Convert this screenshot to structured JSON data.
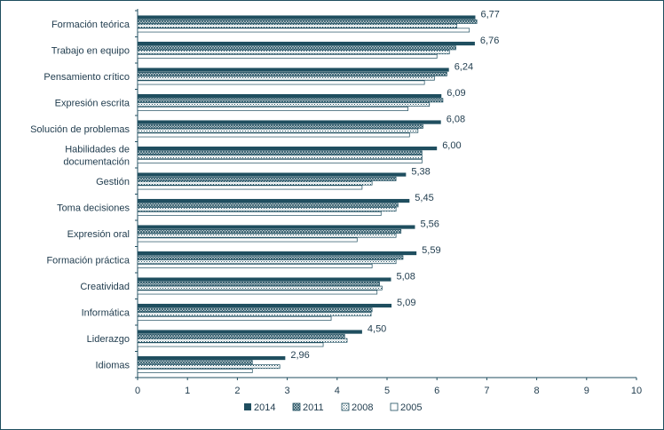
{
  "chart_data": {
    "type": "bar",
    "orientation": "horizontal",
    "categories": [
      "Formación teórica",
      "Trabajo en equipo",
      "Pensamiento crítico",
      "Expresión escrita",
      "Solución de problemas",
      [
        "Habilidades de",
        "documentación"
      ],
      "Gestión",
      "Toma decisiones",
      "Expresión oral",
      "Formación práctica",
      "Creatividad",
      "Informática",
      "Liderazgo",
      "Idiomas"
    ],
    "series": [
      {
        "name": "2014",
        "values": [
          6.77,
          6.76,
          6.24,
          6.09,
          6.08,
          6.0,
          5.38,
          5.45,
          5.56,
          5.59,
          5.08,
          5.09,
          4.5,
          2.96
        ],
        "fill": "solid",
        "color": "#1f4e5f"
      },
      {
        "name": "2011",
        "values": [
          6.8,
          6.38,
          6.2,
          6.12,
          5.72,
          5.7,
          5.18,
          5.22,
          5.28,
          5.32,
          4.85,
          4.7,
          4.15,
          2.3
        ],
        "fill": "crosshatch",
        "color": "#1f4e5f"
      },
      {
        "name": "2008",
        "values": [
          6.4,
          6.25,
          5.95,
          5.85,
          5.62,
          5.7,
          4.7,
          5.18,
          5.18,
          5.18,
          4.9,
          4.68,
          4.2,
          2.85
        ],
        "fill": "dots",
        "color": "#1f4e5f"
      },
      {
        "name": "2005",
        "values": [
          6.65,
          6.0,
          5.75,
          5.42,
          5.45,
          5.7,
          4.5,
          4.88,
          4.4,
          4.7,
          4.8,
          3.88,
          3.72,
          2.3
        ],
        "fill": "horizontal-lines",
        "color": "#1f4e5f"
      }
    ],
    "data_labels": [
      "6,77",
      "6,76",
      "6,24",
      "6,09",
      "6,08",
      "6,00",
      "5,38",
      "5,45",
      "5,56",
      "5,59",
      "5,08",
      "5,09",
      "4,50",
      "2,96"
    ],
    "x_ticks": [
      "0",
      "1",
      "2",
      "3",
      "4",
      "5",
      "6",
      "7",
      "8",
      "9",
      "10"
    ],
    "xlim": [
      0,
      10
    ],
    "grid": false,
    "legend_position": "bottom",
    "legend": [
      "2014",
      "2011",
      "2008",
      "2005"
    ]
  }
}
